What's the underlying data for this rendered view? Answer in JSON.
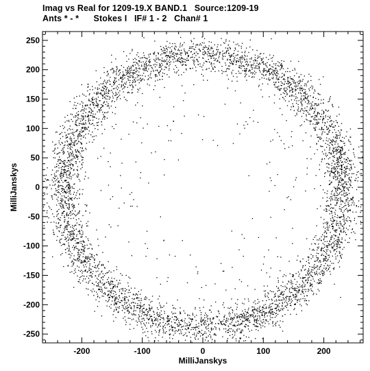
{
  "header": {
    "title_line1": "Imag vs Real for 1209-19.X BAND.1   Source:1209-19",
    "title_line2": "Ants * - *      Stokes I   IF# 1 - 2   Chan# 1"
  },
  "chart_data": {
    "type": "scatter",
    "title": "Imag vs Real for 1209-19.X BAND.1   Source:1209-19",
    "subtitle": "Ants * - *      Stokes I   IF# 1 - 2   Chan# 1",
    "xlabel": "MilliJanskys",
    "ylabel": "MilliJanskys",
    "xlim": [
      -265,
      265
    ],
    "ylim": [
      -265,
      265
    ],
    "xticks": [
      -200,
      -100,
      0,
      100,
      200
    ],
    "yticks": [
      -250,
      -200,
      -150,
      -100,
      -50,
      0,
      50,
      100,
      150,
      200,
      250
    ],
    "grid": false,
    "point_color": "#000000",
    "ring": {
      "center_x": 0,
      "center_y": -5,
      "radius_x": 230,
      "radius_y": 232,
      "spread": 14
    },
    "point_count": 5200,
    "scatter_inside_count": 260
  }
}
